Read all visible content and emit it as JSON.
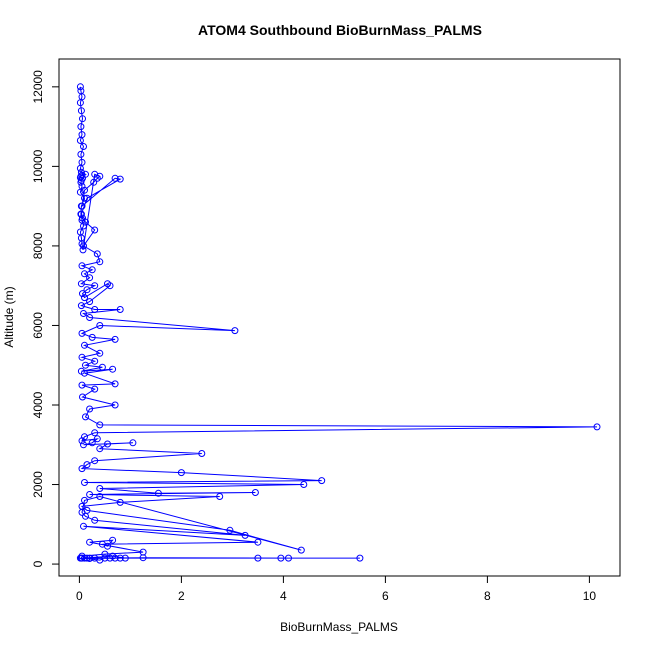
{
  "chart_data": {
    "type": "line",
    "title": "ATOM4 Southbound BioBurnMass_PALMS",
    "xlabel": "BioBurnMass_PALMS",
    "ylabel": "Altitude (m)",
    "xlim": [
      -0.4,
      10.6
    ],
    "ylim": [
      -300,
      12700
    ],
    "xticks": [
      0,
      2,
      4,
      6,
      8,
      10
    ],
    "yticks": [
      0,
      2000,
      4000,
      6000,
      8000,
      10000,
      12000
    ],
    "grid": false,
    "legend": "none",
    "marker": "open-circle",
    "color": "#0000ff",
    "series": [
      {
        "x": [
          0.02,
          0.03,
          0.05,
          0.02,
          0.04,
          0.06,
          0.03,
          0.05,
          0.02,
          0.08,
          0.03,
          0.05,
          0.02,
          0.04,
          0.12,
          0.05,
          0.03,
          0.02,
          0.06,
          0.04,
          0.03,
          0.05,
          0.02,
          0.1,
          0.04,
          0.03,
          0.05,
          0.08,
          0.02,
          0.04,
          0.05,
          0.07,
          0.3,
          0.4,
          0.35,
          0.28,
          0.1,
          0.05,
          0.7,
          0.8,
          0.15,
          0.04,
          0.06,
          0.12,
          0.3,
          0.08,
          0.35,
          0.4,
          0.05,
          0.25,
          0.1,
          0.2,
          0.04,
          0.3,
          0.15,
          0.06,
          0.1,
          0.55,
          0.6,
          0.2,
          0.04,
          0.3,
          0.8,
          0.08,
          0.2,
          3.05,
          0.4,
          0.05,
          0.25,
          0.7,
          0.1,
          0.4,
          0.05,
          0.3,
          0.12,
          0.45,
          0.04,
          0.65,
          0.1,
          0.7,
          0.05,
          0.3,
          0.06,
          0.7,
          0.2,
          0.12,
          0.4,
          10.15,
          0.3,
          0.1,
          0.05,
          0.35,
          0.25,
          0.08,
          1.05,
          0.55,
          0.4,
          2.4,
          0.3,
          0.15,
          0.05,
          2.0,
          4.75,
          0.1,
          4.4,
          0.4,
          1.55,
          3.45,
          0.2,
          2.75,
          0.8,
          0.05,
          0.15,
          2.95,
          4.35,
          0.4,
          0.1,
          0.05,
          0.12,
          0.3,
          3.25,
          0.08,
          3.5,
          0.45,
          0.55,
          0.65,
          0.2,
          1.25,
          0.5,
          0.05,
          0.15,
          0.6,
          1.25,
          4.1,
          5.5,
          0.7,
          3.95,
          0.2,
          3.5,
          0.5,
          0.4,
          0.05,
          0.65,
          0.9,
          0.3,
          0.04,
          0.2,
          0.8,
          0.1,
          0.02
        ],
        "y": [
          12000,
          11900,
          11750,
          11600,
          11400,
          11200,
          11000,
          10800,
          10650,
          10500,
          10300,
          10100,
          9950,
          9850,
          9800,
          9780,
          9750,
          9720,
          9700,
          9650,
          9600,
          9500,
          9350,
          9200,
          9000,
          8800,
          8650,
          8500,
          8350,
          8200,
          8050,
          7900,
          9800,
          9750,
          9700,
          9600,
          9400,
          9000,
          9700,
          9680,
          9200,
          8800,
          8700,
          8600,
          8400,
          8000,
          7800,
          7600,
          7500,
          7400,
          7300,
          7200,
          7050,
          7000,
          6900,
          6800,
          6700,
          7050,
          7000,
          6600,
          6500,
          6400,
          6400,
          6300,
          6200,
          5870,
          6000,
          5800,
          5700,
          5650,
          5500,
          5300,
          5200,
          5100,
          5000,
          4950,
          4850,
          4900,
          4800,
          4530,
          4500,
          4400,
          4200,
          4000,
          3900,
          3700,
          3500,
          3450,
          3300,
          3200,
          3100,
          3150,
          3050,
          3000,
          3050,
          3020,
          2900,
          2780,
          2600,
          2500,
          2400,
          2300,
          2100,
          2050,
          2000,
          1900,
          1780,
          1800,
          1750,
          1700,
          1550,
          1450,
          1350,
          850,
          350,
          1700,
          1600,
          1300,
          1200,
          1100,
          720,
          950,
          550,
          500,
          450,
          600,
          550,
          300,
          250,
          200,
          150,
          150,
          160,
          150,
          150,
          150,
          150,
          150,
          150,
          150,
          100,
          150,
          200,
          150,
          150,
          150,
          140,
          150,
          150,
          150
        ]
      }
    ]
  }
}
